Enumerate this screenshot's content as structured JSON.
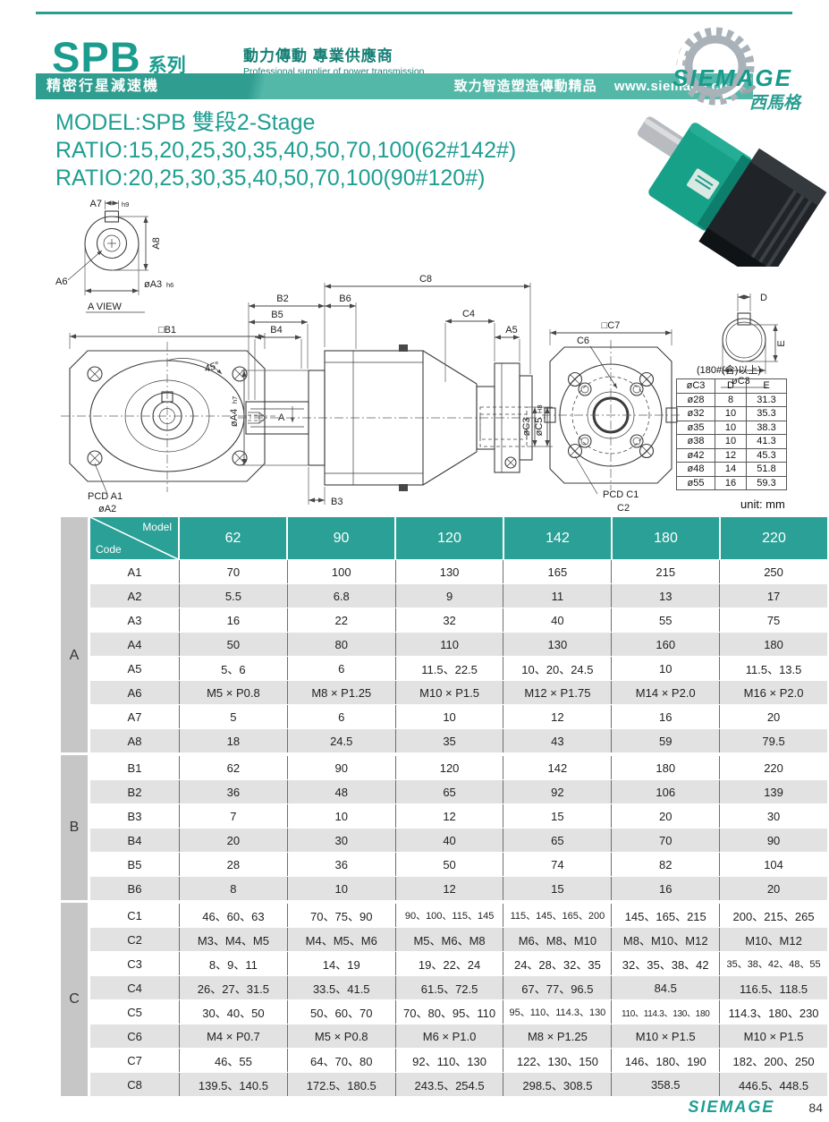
{
  "theme": {
    "teal": "#2a9d90",
    "teal_light": "#54b8a9",
    "table_header": "#2aa096",
    "stripe": "#e2e2e2",
    "group_col": "#c6c6c6"
  },
  "header": {
    "series": "SPB",
    "series_cn": "系列",
    "tagline_cn": "動力傳動 專業供應商",
    "tagline_en": "Professional supplier of power transmission",
    "banner_left": "精密行星減速機",
    "banner_slogan": "致力智造塑造傳動精品",
    "banner_url": "www.siemage.com",
    "logo_name": "SIEMAGE",
    "logo_cn": "西馬格"
  },
  "model_block": {
    "model": "MODEL:SPB 雙段2-Stage",
    "ratio1": "RATIO:15,20,25,30,35,40,50,70,100(62#142#)",
    "ratio2": "RATIO:20,25,30,35,40,50,70,100(90#120#)"
  },
  "drawings": {
    "labels": {
      "a7": "A7",
      "a7_tol": "h9",
      "a8": "A8",
      "a6": "A6",
      "a3": "øA3",
      "a3_tol": "h6",
      "a_view": "A VIEW",
      "b1": "□B1",
      "angle45": "45°",
      "section_a": "A",
      "pcd_a1": "PCD A1",
      "a2": "øA2",
      "c8": "C8",
      "b2": "B2",
      "b5": "B5",
      "b4": "B4",
      "b6": "B6",
      "c4": "C4",
      "a5": "A5",
      "a4": "øA4",
      "a4_tol": "h7",
      "c3": "øC3",
      "c5": "øC5",
      "c5_tol": "H8",
      "b3": "B3",
      "c7": "□C7",
      "c6": "C6",
      "pcd_c1": "PCD C1",
      "c2": "C2",
      "kw_d": "D",
      "kw_e": "E",
      "kw_c3": "øC3"
    },
    "de_table": {
      "title": "(180#(含)以上)",
      "headers": [
        "øC3",
        "D",
        "E"
      ],
      "rows": [
        [
          "ø28",
          "8",
          "31.3"
        ],
        [
          "ø32",
          "10",
          "35.3"
        ],
        [
          "ø35",
          "10",
          "38.3"
        ],
        [
          "ø38",
          "10",
          "41.3"
        ],
        [
          "ø42",
          "12",
          "45.3"
        ],
        [
          "ø48",
          "14",
          "51.8"
        ],
        [
          "ø55",
          "16",
          "59.3"
        ]
      ]
    }
  },
  "main_table": {
    "corner_top": "Model",
    "corner_bottom": "Code",
    "columns": [
      "62",
      "90",
      "120",
      "142",
      "180",
      "220"
    ],
    "groups": [
      {
        "name": "A",
        "rows": [
          {
            "code": "A1",
            "values": [
              "70",
              "100",
              "130",
              "165",
              "215",
              "250"
            ]
          },
          {
            "code": "A2",
            "values": [
              "5.5",
              "6.8",
              "9",
              "11",
              "13",
              "17"
            ]
          },
          {
            "code": "A3",
            "values": [
              "16",
              "22",
              "32",
              "40",
              "55",
              "75"
            ]
          },
          {
            "code": "A4",
            "values": [
              "50",
              "80",
              "110",
              "130",
              "160",
              "180"
            ]
          },
          {
            "code": "A5",
            "values": [
              "5、6",
              "6",
              "11.5、22.5",
              "10、20、24.5",
              "10",
              "11.5、13.5"
            ]
          },
          {
            "code": "A6",
            "values": [
              "M5 × P0.8",
              "M8 × P1.25",
              "M10 × P1.5",
              "M12 × P1.75",
              "M14 × P2.0",
              "M16 × P2.0"
            ]
          },
          {
            "code": "A7",
            "values": [
              "5",
              "6",
              "10",
              "12",
              "16",
              "20"
            ]
          },
          {
            "code": "A8",
            "values": [
              "18",
              "24.5",
              "35",
              "43",
              "59",
              "79.5"
            ]
          }
        ]
      },
      {
        "name": "B",
        "rows": [
          {
            "code": "B1",
            "values": [
              "62",
              "90",
              "120",
              "142",
              "180",
              "220"
            ]
          },
          {
            "code": "B2",
            "values": [
              "36",
              "48",
              "65",
              "92",
              "106",
              "139"
            ]
          },
          {
            "code": "B3",
            "values": [
              "7",
              "10",
              "12",
              "15",
              "20",
              "30"
            ]
          },
          {
            "code": "B4",
            "values": [
              "20",
              "30",
              "40",
              "65",
              "70",
              "90"
            ]
          },
          {
            "code": "B5",
            "values": [
              "28",
              "36",
              "50",
              "74",
              "82",
              "104"
            ]
          },
          {
            "code": "B6",
            "values": [
              "8",
              "10",
              "12",
              "15",
              "16",
              "20"
            ]
          }
        ]
      },
      {
        "name": "C",
        "rows": [
          {
            "code": "C1",
            "values": [
              "46、60、63",
              "70、75、90",
              "90、100、115、145",
              "115、145、165、200",
              "145、165、215",
              "200、215、265"
            ]
          },
          {
            "code": "C2",
            "values": [
              "M3、M4、M5",
              "M4、M5、M6",
              "M5、M6、M8",
              "M6、M8、M10",
              "M8、M10、M12",
              "M10、M12"
            ]
          },
          {
            "code": "C3",
            "values": [
              "8、9、11",
              "14、19",
              "19、22、24",
              "24、28、32、35",
              "32、35、38、42",
              "35、38、42、48、55"
            ]
          },
          {
            "code": "C4",
            "values": [
              "26、27、31.5",
              "33.5、41.5",
              "61.5、72.5",
              "67、77、96.5",
              "84.5",
              "116.5、118.5"
            ]
          },
          {
            "code": "C5",
            "values": [
              "30、40、50",
              "50、60、70",
              "70、80、95、110",
              "95、110、114.3、130",
              "110、114.3、130、180",
              "114.3、180、230"
            ]
          },
          {
            "code": "C6",
            "values": [
              "M4 × P0.7",
              "M5 × P0.8",
              "M6 × P1.0",
              "M8 × P1.25",
              "M10 × P1.5",
              "M10 × P1.5"
            ]
          },
          {
            "code": "C7",
            "values": [
              "46、55",
              "64、70、80",
              "92、110、130",
              "122、130、150",
              "146、180、190",
              "182、200、250"
            ]
          },
          {
            "code": "C8",
            "values": [
              "139.5、140.5",
              "172.5、180.5",
              "243.5、254.5",
              "298.5、308.5",
              "358.5",
              "446.5、448.5"
            ]
          }
        ]
      }
    ]
  },
  "page": {
    "unit_label": "unit: mm",
    "page_number": "84"
  },
  "footer": {
    "logo": "SIEMAGE"
  }
}
